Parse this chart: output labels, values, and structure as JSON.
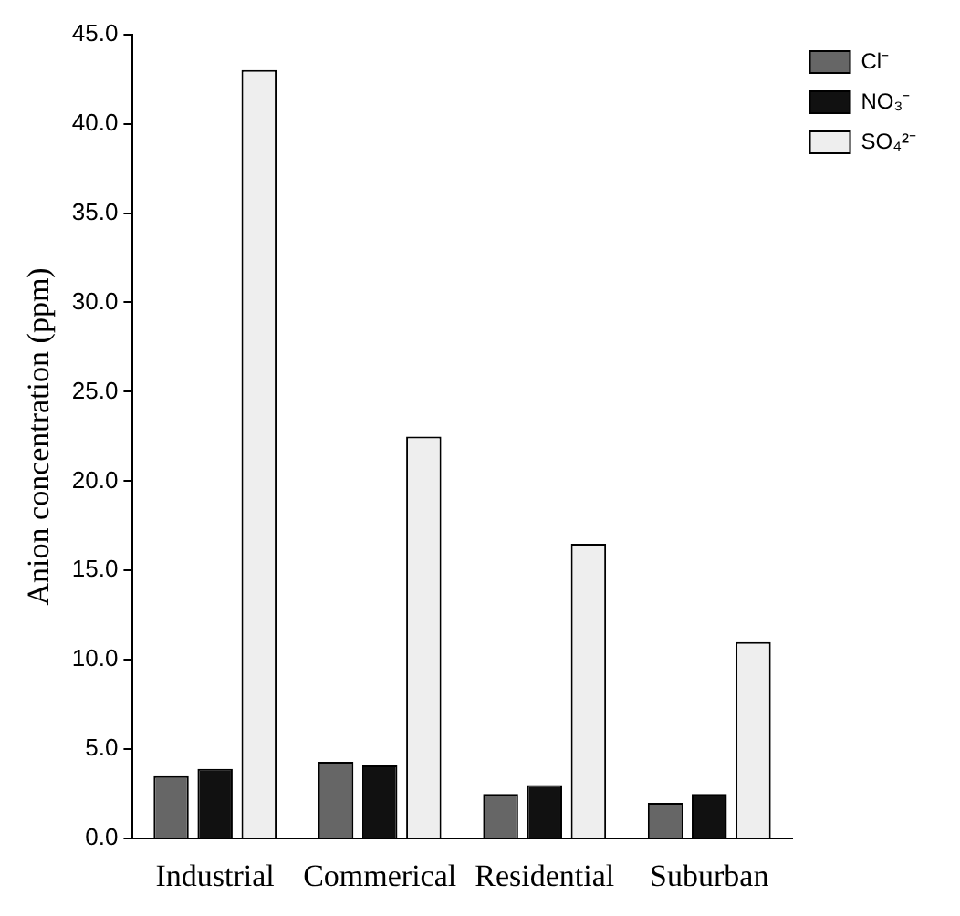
{
  "chart_data": {
    "type": "bar",
    "ylabel": "Anion concentration (ppm)",
    "categories": [
      "Industrial",
      "Commerical",
      "Residential",
      "Suburban"
    ],
    "series": [
      {
        "name": "Cl⁻",
        "color": "#666666",
        "values": [
          3.5,
          4.3,
          2.5,
          2.0
        ]
      },
      {
        "name": "NO₃⁻",
        "color": "#111111",
        "values": [
          3.9,
          4.1,
          3.0,
          2.5
        ]
      },
      {
        "name": "SO₄²⁻",
        "color": "#eeeeee",
        "values": [
          43.0,
          22.5,
          16.5,
          11.0
        ]
      }
    ],
    "ylim": [
      0,
      45
    ],
    "yticks": [
      {
        "value": 0,
        "label": "0.0"
      },
      {
        "value": 5,
        "label": "5.0"
      },
      {
        "value": 10,
        "label": "10.0"
      },
      {
        "value": 15,
        "label": "15.0"
      },
      {
        "value": 20,
        "label": "20.0"
      },
      {
        "value": 25,
        "label": "25.0"
      },
      {
        "value": 30,
        "label": "30.0"
      },
      {
        "value": 35,
        "label": "35.0"
      },
      {
        "value": 40,
        "label": "40.0"
      },
      {
        "value": 45,
        "label": "45.0"
      }
    ],
    "grid": false,
    "legend": "top right"
  }
}
